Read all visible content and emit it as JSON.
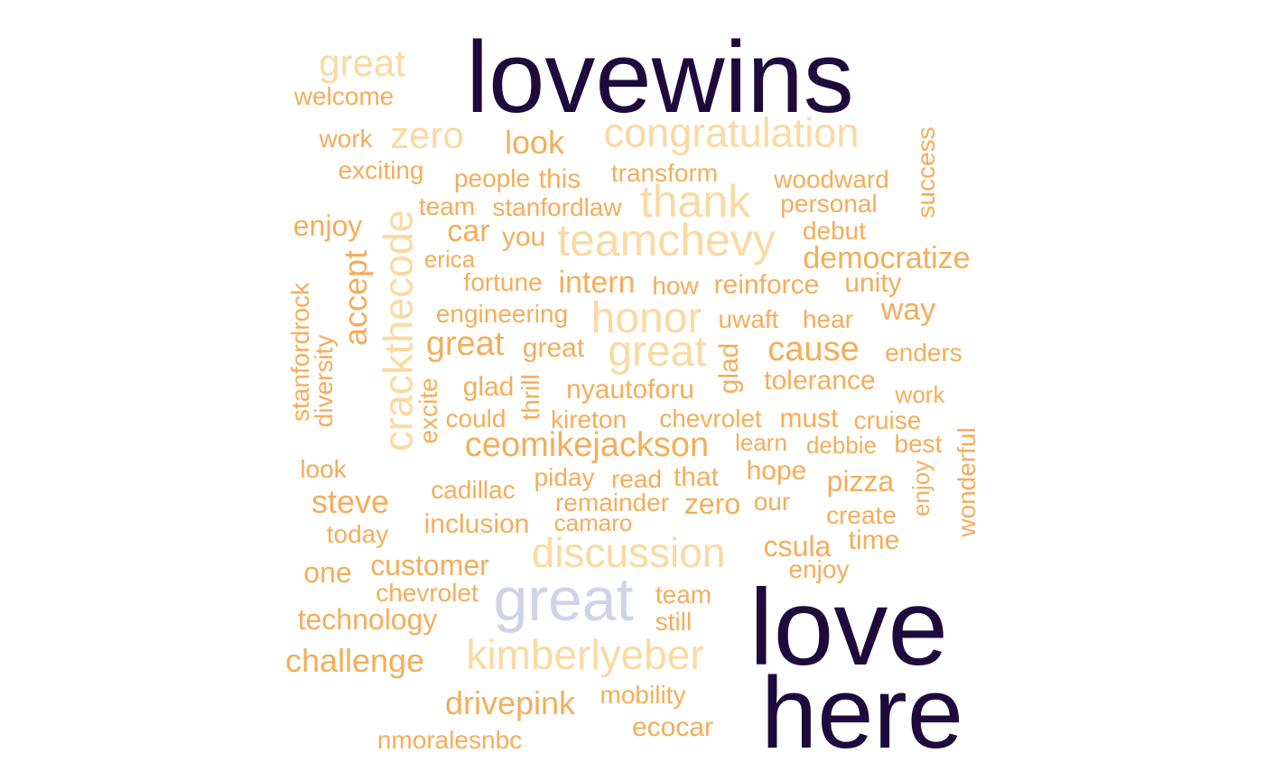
{
  "colors": {
    "dark": "#1e0a3c",
    "peach": "#fbd9a2",
    "orange": "#f5ad5a",
    "lavender": "#cfd3e8",
    "background": "#ffffff"
  },
  "words": [
    {
      "text": "lovewins",
      "color": "dark"
    },
    {
      "text": "love",
      "color": "dark"
    },
    {
      "text": "here",
      "color": "dark"
    },
    {
      "text": "great",
      "color": "lavender"
    },
    {
      "text": "great",
      "color": "peach"
    },
    {
      "text": "zero",
      "color": "peach"
    },
    {
      "text": "congratulation",
      "color": "peach"
    },
    {
      "text": "thank",
      "color": "peach"
    },
    {
      "text": "teamchevy",
      "color": "peach"
    },
    {
      "text": "crackthecode",
      "color": "peach"
    },
    {
      "text": "honor",
      "color": "peach"
    },
    {
      "text": "great",
      "color": "peach"
    },
    {
      "text": "discussion",
      "color": "peach"
    },
    {
      "text": "kimberlyeber",
      "color": "peach"
    },
    {
      "text": "welcome",
      "color": "orange"
    },
    {
      "text": "work",
      "color": "orange"
    },
    {
      "text": "look",
      "color": "orange"
    },
    {
      "text": "success",
      "color": "orange"
    },
    {
      "text": "exciting",
      "color": "orange"
    },
    {
      "text": "people",
      "color": "orange"
    },
    {
      "text": "this",
      "color": "orange"
    },
    {
      "text": "transform",
      "color": "orange"
    },
    {
      "text": "woodward",
      "color": "orange"
    },
    {
      "text": "team",
      "color": "orange"
    },
    {
      "text": "stanfordlaw",
      "color": "orange"
    },
    {
      "text": "personal",
      "color": "orange"
    },
    {
      "text": "enjoy",
      "color": "orange"
    },
    {
      "text": "car",
      "color": "orange"
    },
    {
      "text": "you",
      "color": "orange"
    },
    {
      "text": "debut",
      "color": "orange"
    },
    {
      "text": "accept",
      "color": "orange"
    },
    {
      "text": "erica",
      "color": "orange"
    },
    {
      "text": "democratize",
      "color": "orange"
    },
    {
      "text": "stanfordrock",
      "color": "orange"
    },
    {
      "text": "fortune",
      "color": "orange"
    },
    {
      "text": "intern",
      "color": "orange"
    },
    {
      "text": "how",
      "color": "orange"
    },
    {
      "text": "reinforce",
      "color": "orange"
    },
    {
      "text": "unity",
      "color": "orange"
    },
    {
      "text": "engineering",
      "color": "orange"
    },
    {
      "text": "way",
      "color": "orange"
    },
    {
      "text": "uwaft",
      "color": "orange"
    },
    {
      "text": "hear",
      "color": "orange"
    },
    {
      "text": "diversity",
      "color": "orange"
    },
    {
      "text": "great",
      "color": "orange"
    },
    {
      "text": "great",
      "color": "orange"
    },
    {
      "text": "glad",
      "color": "orange"
    },
    {
      "text": "cause",
      "color": "orange"
    },
    {
      "text": "enders",
      "color": "orange"
    },
    {
      "text": "excite",
      "color": "orange"
    },
    {
      "text": "glad",
      "color": "orange"
    },
    {
      "text": "thrill",
      "color": "orange"
    },
    {
      "text": "nyautoforu",
      "color": "orange"
    },
    {
      "text": "tolerance",
      "color": "orange"
    },
    {
      "text": "work",
      "color": "orange"
    },
    {
      "text": "could",
      "color": "orange"
    },
    {
      "text": "kireton",
      "color": "orange"
    },
    {
      "text": "chevrolet",
      "color": "orange"
    },
    {
      "text": "must",
      "color": "orange"
    },
    {
      "text": "cruise",
      "color": "orange"
    },
    {
      "text": "ceomikejackson",
      "color": "orange"
    },
    {
      "text": "learn",
      "color": "orange"
    },
    {
      "text": "debbie",
      "color": "orange"
    },
    {
      "text": "best",
      "color": "orange"
    },
    {
      "text": "wonderful",
      "color": "orange"
    },
    {
      "text": "look",
      "color": "orange"
    },
    {
      "text": "piday",
      "color": "orange"
    },
    {
      "text": "read",
      "color": "orange"
    },
    {
      "text": "that",
      "color": "orange"
    },
    {
      "text": "hope",
      "color": "orange"
    },
    {
      "text": "pizza",
      "color": "orange"
    },
    {
      "text": "enjoy",
      "color": "orange"
    },
    {
      "text": "cadillac",
      "color": "orange"
    },
    {
      "text": "steve",
      "color": "orange"
    },
    {
      "text": "remainder",
      "color": "orange"
    },
    {
      "text": "zero",
      "color": "orange"
    },
    {
      "text": "our",
      "color": "orange"
    },
    {
      "text": "create",
      "color": "orange"
    },
    {
      "text": "today",
      "color": "orange"
    },
    {
      "text": "inclusion",
      "color": "orange"
    },
    {
      "text": "camaro",
      "color": "orange"
    },
    {
      "text": "time",
      "color": "orange"
    },
    {
      "text": "csula",
      "color": "orange"
    },
    {
      "text": "one",
      "color": "orange"
    },
    {
      "text": "customer",
      "color": "orange"
    },
    {
      "text": "enjoy",
      "color": "orange"
    },
    {
      "text": "chevrolet",
      "color": "orange"
    },
    {
      "text": "team",
      "color": "orange"
    },
    {
      "text": "technology",
      "color": "orange"
    },
    {
      "text": "still",
      "color": "orange"
    },
    {
      "text": "challenge",
      "color": "orange"
    },
    {
      "text": "drivepink",
      "color": "orange"
    },
    {
      "text": "mobility",
      "color": "orange"
    },
    {
      "text": "ecocar",
      "color": "orange"
    },
    {
      "text": "nmoralesnbc",
      "color": "orange"
    }
  ]
}
